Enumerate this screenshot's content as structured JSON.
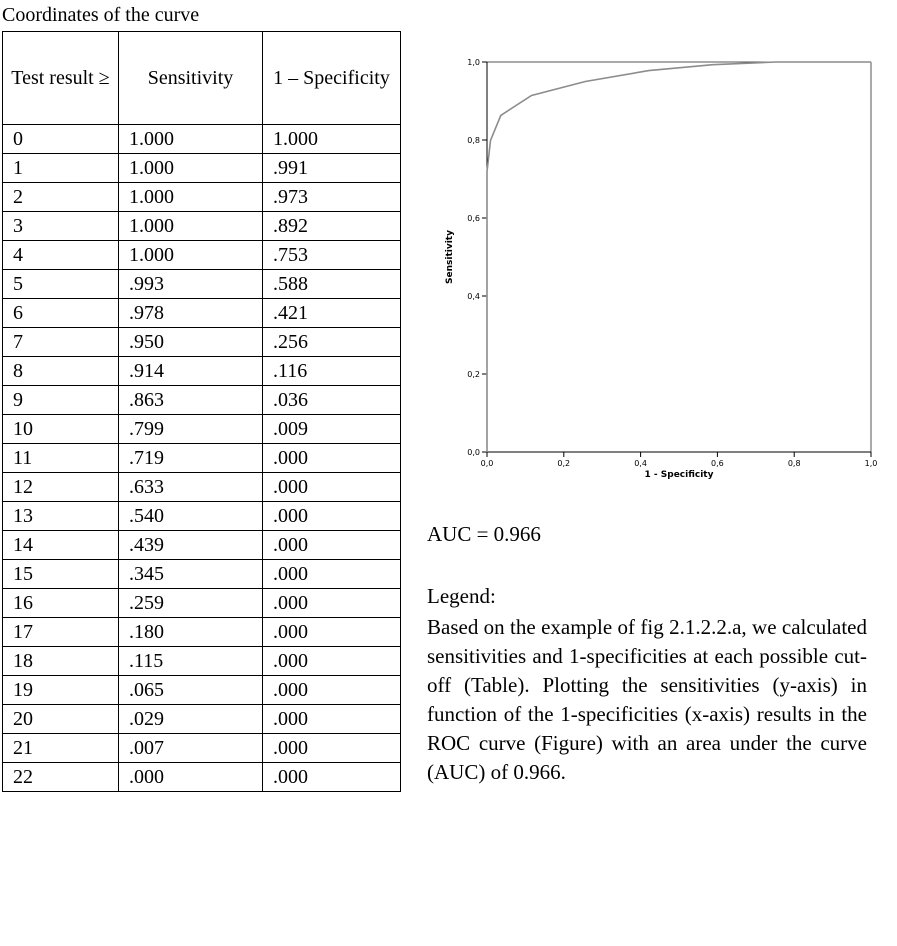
{
  "table_caption": "Coordinates of the curve",
  "table": {
    "headers": [
      "Test result ≥",
      "Sensitivity",
      "1 – Specificity"
    ],
    "rows": [
      [
        "0",
        "1.000",
        "1.000"
      ],
      [
        "1",
        "1.000",
        ".991"
      ],
      [
        "2",
        "1.000",
        ".973"
      ],
      [
        "3",
        "1.000",
        ".892"
      ],
      [
        "4",
        "1.000",
        ".753"
      ],
      [
        "5",
        ".993",
        ".588"
      ],
      [
        "6",
        ".978",
        ".421"
      ],
      [
        "7",
        ".950",
        ".256"
      ],
      [
        "8",
        ".914",
        ".116"
      ],
      [
        "9",
        ".863",
        ".036"
      ],
      [
        "10",
        ".799",
        ".009"
      ],
      [
        "11",
        ".719",
        ".000"
      ],
      [
        "12",
        ".633",
        ".000"
      ],
      [
        "13",
        ".540",
        ".000"
      ],
      [
        "14",
        ".439",
        ".000"
      ],
      [
        "15",
        ".345",
        ".000"
      ],
      [
        "16",
        ".259",
        ".000"
      ],
      [
        "17",
        ".180",
        ".000"
      ],
      [
        "18",
        ".115",
        ".000"
      ],
      [
        "19",
        ".065",
        ".000"
      ],
      [
        "20",
        ".029",
        ".000"
      ],
      [
        "21",
        ".007",
        ".000"
      ],
      [
        "22",
        ".000",
        ".000"
      ]
    ]
  },
  "chart_data": {
    "type": "line",
    "title": "",
    "xlabel": "1 - Specificity",
    "ylabel": "Sensitivity",
    "xlim": [
      0,
      1
    ],
    "ylim": [
      0,
      1
    ],
    "xticks": [
      "0,0",
      "0,2",
      "0,4",
      "0,6",
      "0,8",
      "1,0"
    ],
    "yticks": [
      "0,0",
      "0,2",
      "0,4",
      "0,6",
      "0,8",
      "1,0"
    ],
    "grid": false,
    "colors": {
      "curve": "#8c8c8c",
      "axes": "#000000",
      "frame": "#555555"
    },
    "series": [
      {
        "x": [
          0.0,
          0.0,
          0.0,
          0.0,
          0.0,
          0.0,
          0.0,
          0.0,
          0.0,
          0.0,
          0.0,
          0.0,
          0.009,
          0.036,
          0.116,
          0.256,
          0.421,
          0.588,
          0.753,
          0.892,
          0.973,
          0.991,
          1.0
        ],
        "y": [
          0.0,
          0.007,
          0.029,
          0.065,
          0.115,
          0.18,
          0.259,
          0.345,
          0.439,
          0.54,
          0.633,
          0.719,
          0.799,
          0.863,
          0.914,
          0.95,
          0.978,
          0.993,
          1.0,
          1.0,
          1.0,
          1.0,
          1.0
        ]
      }
    ]
  },
  "auc_text": "AUC = 0.966",
  "legend_title": "Legend:",
  "legend_text": "Based on the example of fig 2.1.2.2.a, we calculated sensitivities and 1-specificities at each possible cut-off (Table). Plotting the sensitivities (y-axis) in function of the 1-specificities (x-axis) results in the ROC curve (Figure) with an area under the curve (AUC) of 0.966."
}
